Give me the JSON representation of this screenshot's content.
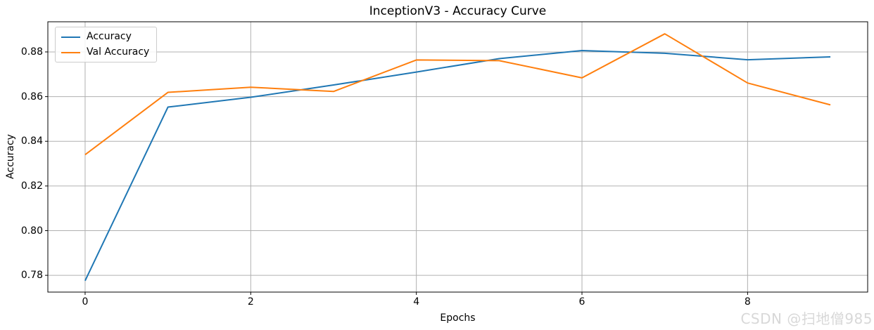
{
  "watermark": "CSDN @扫地僧985",
  "colors": {
    "grid": "#b0b0b0",
    "spine": "#000000",
    "tick": "#000000",
    "background": "#ffffff",
    "watermark": "#d8d8d8"
  },
  "chart_data": {
    "type": "line",
    "title": "InceptionV3 - Accuracy Curve",
    "xlabel": "Epochs",
    "ylabel": "Accuracy",
    "x": [
      0,
      1,
      2,
      3,
      4,
      5,
      6,
      7,
      8,
      9
    ],
    "series": [
      {
        "name": "Accuracy",
        "color": "#1f77b4",
        "values": [
          0.7776,
          0.8553,
          0.8597,
          0.8652,
          0.871,
          0.877,
          0.8806,
          0.8794,
          0.8765,
          0.8778
        ]
      },
      {
        "name": "Val Accuracy",
        "color": "#ff7f0e",
        "values": [
          0.834,
          0.8619,
          0.8642,
          0.8623,
          0.8764,
          0.8761,
          0.8684,
          0.8881,
          0.8661,
          0.8563
        ]
      }
    ],
    "xlim": [
      -0.45,
      9.45
    ],
    "ylim": [
      0.7725,
      0.8935
    ],
    "xticks": [
      0,
      2,
      4,
      6,
      8
    ],
    "yticks": [
      0.78,
      0.8,
      0.82,
      0.84,
      0.86,
      0.88
    ],
    "grid": true,
    "legend_position": "upper left"
  }
}
